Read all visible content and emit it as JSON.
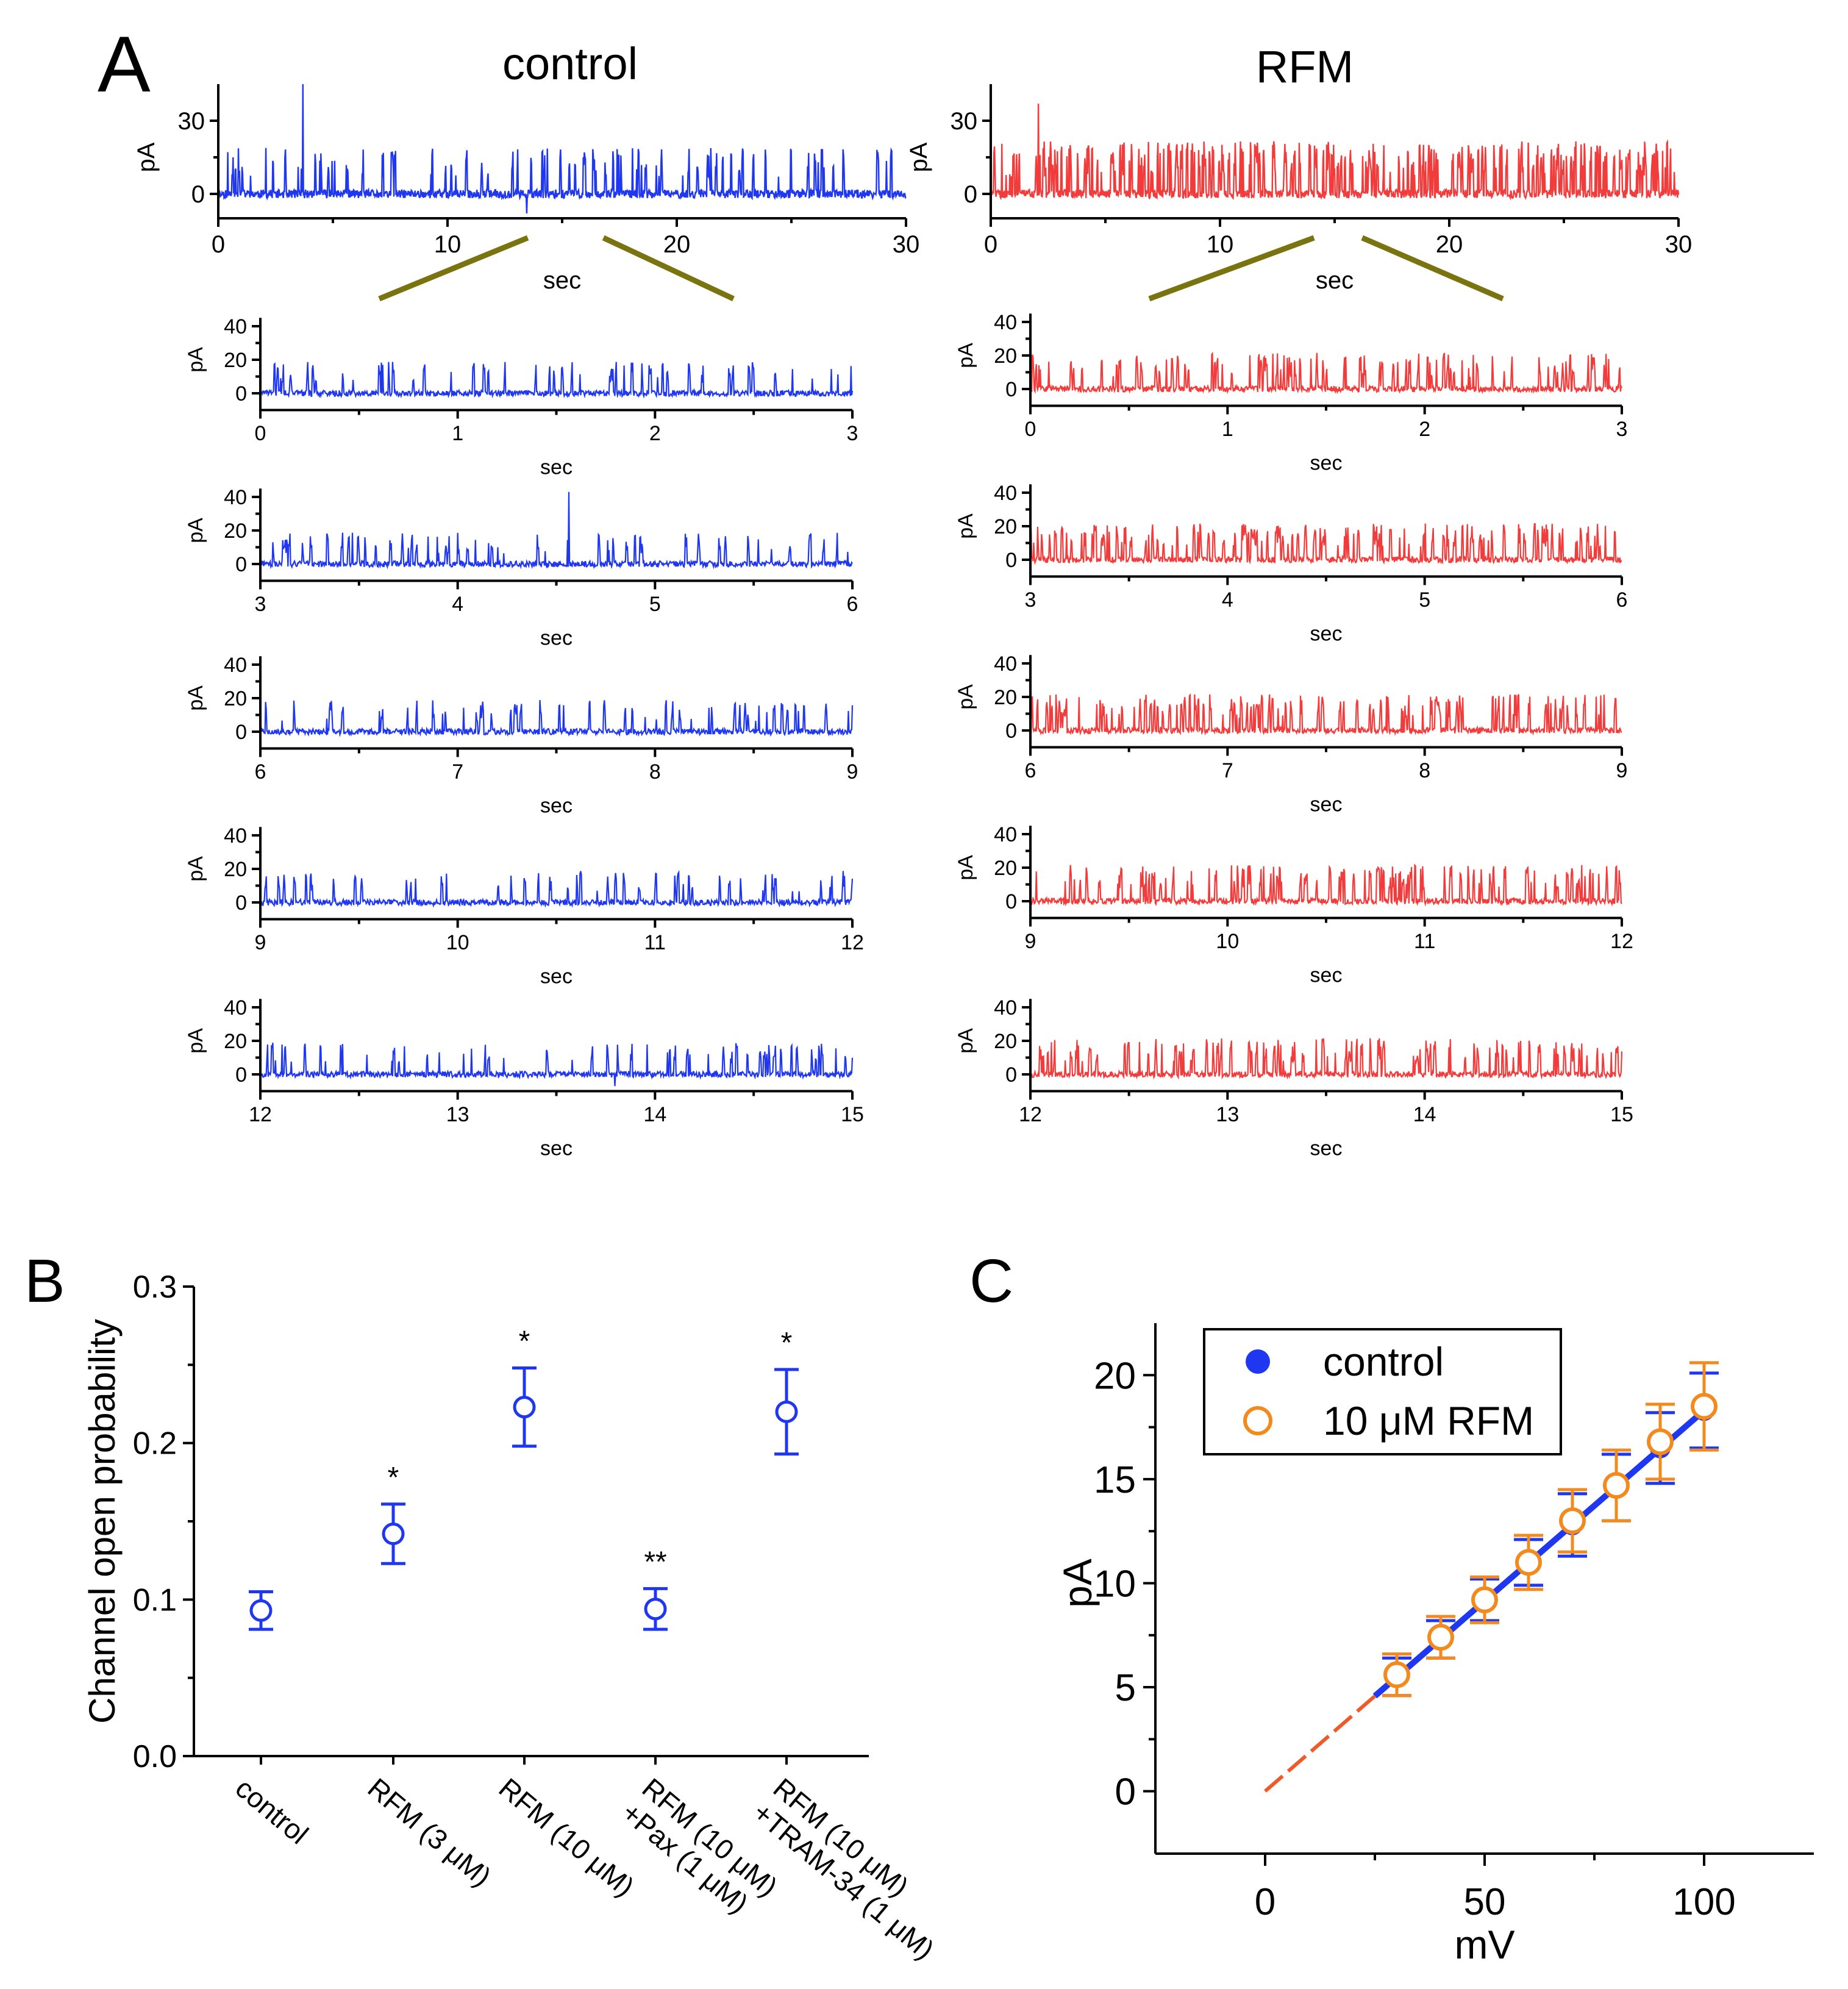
{
  "panel_a": {
    "letter": "A",
    "control_title": "control",
    "rfm_title": "RFM",
    "colors": {
      "control": "#1f37f0",
      "rfm": "#f23b3b",
      "zoom": "#7a7410"
    },
    "overview": {
      "ylabel": "pA",
      "xlabel": "sec",
      "yticks": [
        0,
        30
      ],
      "xticks": [
        0,
        10,
        20,
        30
      ],
      "xlim": [
        0,
        30
      ],
      "ylim": [
        -10,
        45
      ]
    },
    "zoom": {
      "ylabel": "pA",
      "xlabel": "sec",
      "yticks": [
        0,
        20,
        40
      ],
      "ylim": [
        -10,
        45
      ]
    },
    "segments": [
      {
        "xlim": [
          0,
          3
        ],
        "xticks": [
          0,
          1,
          2,
          3
        ]
      },
      {
        "xlim": [
          3,
          6
        ],
        "xticks": [
          3,
          4,
          5,
          6
        ]
      },
      {
        "xlim": [
          6,
          9
        ],
        "xticks": [
          6,
          7,
          8,
          9
        ]
      },
      {
        "xlim": [
          9,
          12
        ],
        "xticks": [
          9,
          10,
          11,
          12
        ]
      },
      {
        "xlim": [
          12,
          15
        ],
        "xticks": [
          12,
          13,
          14,
          15
        ]
      }
    ]
  },
  "panel_b": {
    "letter": "B",
    "ylabel": "Channel open probability",
    "color": "#1f37f0",
    "ylim": [
      0,
      0.3
    ],
    "yticks": [
      "0.0",
      "0.1",
      "0.2",
      "0.3"
    ]
  },
  "panel_c": {
    "letter": "C",
    "xlabel": "mV",
    "ylabel": "pA",
    "xlim": [
      -25,
      125
    ],
    "ylim": [
      -3,
      22.5
    ],
    "xticks": [
      "0",
      "50",
      "100"
    ],
    "yticks": [
      "0",
      "5",
      "10",
      "15",
      "20"
    ],
    "legend": {
      "control": "control",
      "rfm": "10 μM RFM"
    },
    "colors": {
      "control": "#1f37f0",
      "rfm": "#f28a1e",
      "fit_extrapolation": "#f05a2a"
    }
  },
  "chart_data": [
    {
      "type": "line",
      "title": "control",
      "panel": "A",
      "xlabel": "sec",
      "ylabel": "pA",
      "xlim": [
        0,
        30
      ],
      "ylim": [
        -10,
        45
      ],
      "description_series": [
        {
          "name": "control single-channel current trace",
          "baseline": 0,
          "typical_open_level": 15,
          "peak": 45,
          "min": -8
        }
      ]
    },
    {
      "type": "line",
      "title": "RFM",
      "panel": "A",
      "xlabel": "sec",
      "ylabel": "pA",
      "xlim": [
        0,
        30
      ],
      "ylim": [
        -10,
        45
      ],
      "description_series": [
        {
          "name": "RFM single-channel current trace",
          "baseline": 0,
          "typical_open_level": 20,
          "peak": 37,
          "min": -4
        }
      ]
    },
    {
      "type": "scatter",
      "panel": "B",
      "title": "",
      "xlabel": "",
      "ylabel": "Channel open probability",
      "ylim": [
        0,
        0.3
      ],
      "categories": [
        "control",
        "RFM (3 μM)",
        "RFM (10 μM)",
        "RFM (10 μM) +Pax (1 μM)",
        "RFM (10 μM) +TRAM-34 (1 μM)"
      ],
      "values": [
        0.093,
        0.142,
        0.223,
        0.094,
        0.22
      ],
      "errors": [
        0.012,
        0.019,
        0.025,
        0.013,
        0.027
      ],
      "significance": [
        "",
        "*",
        "*",
        "**",
        "*"
      ]
    },
    {
      "type": "scatter",
      "panel": "C",
      "title": "",
      "xlabel": "mV",
      "ylabel": "pA",
      "xlim": [
        -25,
        125
      ],
      "ylim": [
        -3,
        22.5
      ],
      "series": [
        {
          "name": "control",
          "x": [
            30,
            40,
            50,
            60,
            70,
            80,
            90,
            100
          ],
          "y": [
            5.5,
            7.3,
            9.2,
            11.0,
            12.8,
            14.6,
            16.5,
            18.3
          ],
          "err": [
            0.9,
            0.9,
            1.0,
            1.1,
            1.5,
            1.6,
            1.7,
            1.8
          ]
        },
        {
          "name": "10 μM RFM",
          "x": [
            30,
            40,
            50,
            60,
            70,
            80,
            90,
            100
          ],
          "y": [
            5.6,
            7.4,
            9.2,
            11.0,
            13.0,
            14.7,
            16.8,
            18.5
          ],
          "err": [
            1.0,
            1.0,
            1.1,
            1.3,
            1.5,
            1.7,
            1.8,
            2.1
          ]
        }
      ],
      "fit": {
        "slope": 0.183,
        "intercept": 0,
        "x_range": [
          0,
          100
        ]
      }
    }
  ]
}
